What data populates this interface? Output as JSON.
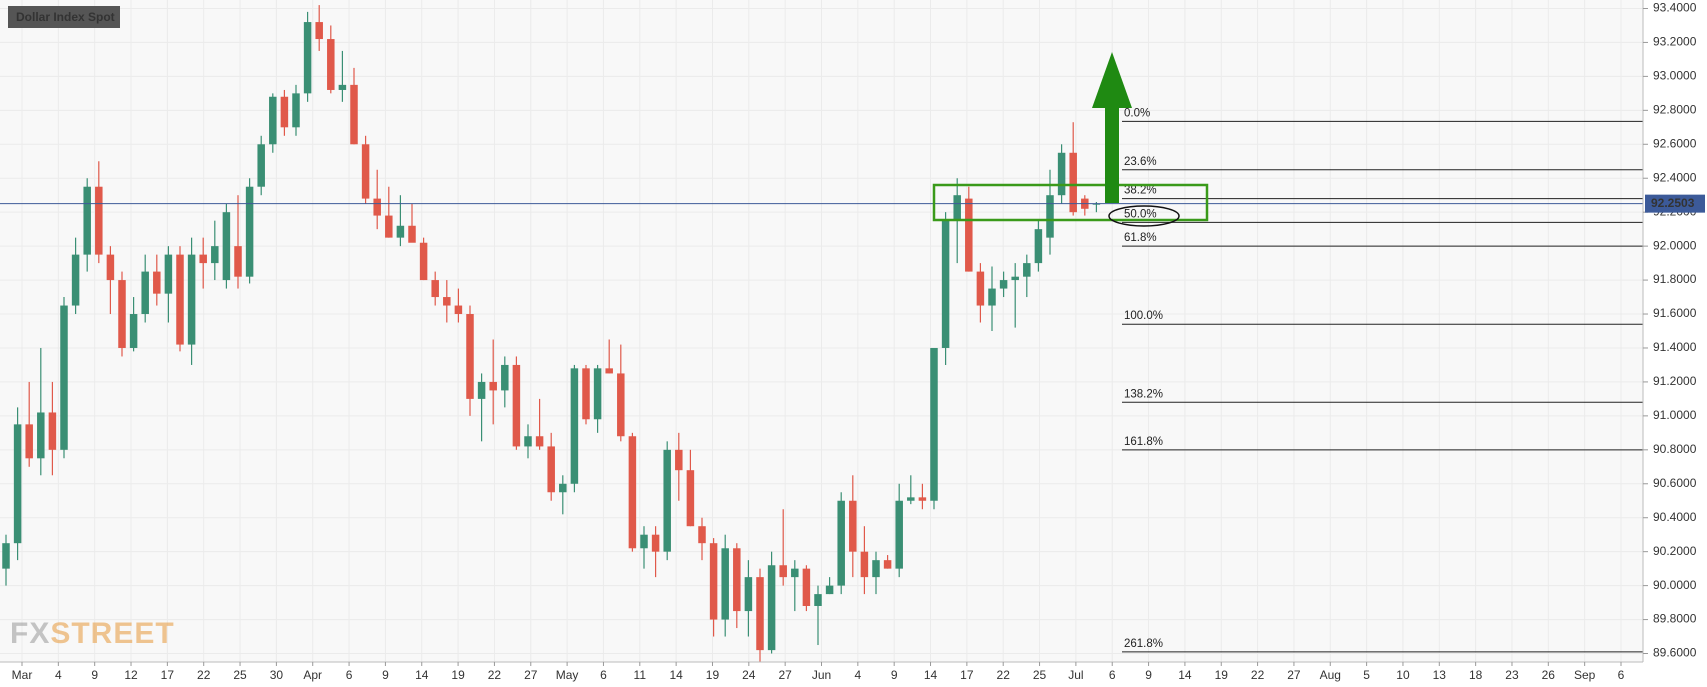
{
  "chart_data": {
    "type": "candlestick",
    "title": "Dollar Index Spot",
    "watermark": [
      "FX",
      "STREET"
    ],
    "up_color": "#3a8f74",
    "down_color": "#e0594a",
    "last_price": 92.2503,
    "last_price_color": "#3c5a99",
    "ylim": [
      89.55,
      93.45
    ],
    "yticks": [
      {
        "value": 93.4,
        "label": "93.4000"
      },
      {
        "value": 93.2,
        "label": "93.2000"
      },
      {
        "value": 93.0,
        "label": "93.0000"
      },
      {
        "value": 92.8,
        "label": "92.8000"
      },
      {
        "value": 92.6,
        "label": "92.6000"
      },
      {
        "value": 92.4,
        "label": "92.4000"
      },
      {
        "value": 92.2,
        "label": "92.2000"
      },
      {
        "value": 92.0,
        "label": "92.0000"
      },
      {
        "value": 91.8,
        "label": "91.8000"
      },
      {
        "value": 91.6,
        "label": "91.6000"
      },
      {
        "value": 91.4,
        "label": "91.4000"
      },
      {
        "value": 91.2,
        "label": "91.2000"
      },
      {
        "value": 91.0,
        "label": "91.0000"
      },
      {
        "value": 90.8,
        "label": "90.8000"
      },
      {
        "value": 90.6,
        "label": "90.6000"
      },
      {
        "value": 90.4,
        "label": "90.4000"
      },
      {
        "value": 90.2,
        "label": "90.2000"
      },
      {
        "value": 90.0,
        "label": "90.0000"
      },
      {
        "value": 89.8,
        "label": "89.8000"
      },
      {
        "value": 89.6,
        "label": "89.6000"
      }
    ],
    "xticks": [
      "Mar",
      "4",
      "9",
      "12",
      "17",
      "22",
      "25",
      "30",
      "Apr",
      "6",
      "9",
      "14",
      "19",
      "22",
      "27",
      "May",
      "6",
      "11",
      "14",
      "19",
      "24",
      "27",
      "Jun",
      "4",
      "9",
      "14",
      "17",
      "22",
      "25",
      "Jul",
      "6",
      "9",
      "14",
      "19",
      "22",
      "27",
      "Aug",
      "5",
      "10",
      "13",
      "18",
      "23",
      "26",
      "Sep",
      "6"
    ],
    "grid": true,
    "fib_levels": [
      {
        "label": "0.0%",
        "value": 92.735
      },
      {
        "label": "23.6%",
        "value": 92.45
      },
      {
        "label": "38.2%",
        "value": 92.28
      },
      {
        "label": "50.0%",
        "value": 92.14
      },
      {
        "label": "61.8%",
        "value": 92.0
      },
      {
        "label": "100.0%",
        "value": 91.54
      },
      {
        "label": "138.2%",
        "value": 91.08
      },
      {
        "label": "161.8%",
        "value": 90.8
      },
      {
        "label": "261.8%",
        "value": 89.61
      }
    ],
    "open": [
      90.1,
      90.25,
      90.95,
      90.75,
      91.02,
      90.8,
      91.65,
      91.95,
      92.35,
      91.95,
      91.8,
      91.4,
      91.6,
      91.85,
      91.72,
      91.95,
      91.42,
      91.95,
      91.9,
      91.8,
      92.0,
      91.82,
      92.35,
      92.6,
      92.88,
      92.7,
      92.9,
      93.32,
      93.22,
      92.92,
      92.95,
      92.6,
      92.28,
      92.18,
      92.05,
      92.12,
      92.02,
      91.8,
      91.7,
      91.65,
      91.6,
      91.1,
      91.2,
      91.15,
      91.3,
      90.82,
      90.88,
      90.82,
      90.55,
      90.6,
      91.28,
      90.98,
      91.28,
      91.25,
      90.88,
      90.22,
      90.3,
      90.2,
      90.8,
      90.68,
      90.35,
      90.25,
      89.8,
      90.22,
      89.85,
      90.05,
      89.62,
      90.12,
      90.05,
      90.1,
      89.88,
      89.95,
      90.0,
      90.5,
      90.2,
      90.05,
      90.15,
      90.1,
      90.5,
      90.52,
      90.5,
      91.4,
      92.15,
      92.28,
      91.85,
      91.65,
      91.75,
      91.8,
      91.82,
      91.9,
      92.05,
      92.3,
      92.55,
      92.28,
      92.25
    ],
    "high": [
      90.3,
      91.05,
      91.2,
      91.4,
      91.2,
      91.7,
      92.05,
      92.4,
      92.5,
      92.0,
      91.85,
      91.7,
      91.95,
      91.95,
      92.0,
      92.0,
      92.05,
      92.05,
      92.15,
      92.25,
      92.3,
      92.4,
      92.65,
      92.9,
      92.92,
      92.95,
      93.38,
      93.42,
      93.3,
      93.15,
      93.05,
      92.65,
      92.45,
      92.35,
      92.3,
      92.25,
      92.05,
      91.85,
      91.8,
      91.75,
      91.65,
      91.25,
      91.45,
      91.35,
      91.35,
      90.95,
      91.1,
      90.9,
      90.65,
      91.3,
      91.3,
      91.3,
      91.45,
      91.42,
      90.9,
      90.35,
      90.35,
      90.85,
      90.9,
      90.8,
      90.4,
      90.28,
      90.3,
      90.25,
      90.15,
      90.1,
      90.2,
      90.45,
      90.15,
      90.12,
      90.0,
      90.05,
      90.55,
      90.65,
      90.35,
      90.2,
      90.18,
      90.6,
      90.65,
      90.6,
      91.4,
      92.2,
      92.4,
      92.35,
      91.9,
      91.88,
      91.85,
      91.9,
      91.95,
      92.15,
      92.45,
      92.6,
      92.73,
      92.3,
      92.26
    ],
    "low": [
      90.0,
      90.15,
      90.7,
      90.65,
      90.65,
      90.75,
      91.6,
      91.85,
      91.9,
      91.6,
      91.35,
      91.38,
      91.55,
      91.65,
      91.55,
      91.38,
      91.3,
      91.75,
      91.8,
      91.75,
      91.75,
      91.78,
      92.3,
      92.55,
      92.65,
      92.65,
      92.85,
      93.15,
      92.9,
      92.85,
      92.6,
      92.25,
      92.1,
      92.05,
      92.0,
      92.05,
      91.8,
      91.65,
      91.55,
      91.55,
      91.0,
      90.85,
      90.95,
      91.05,
      90.8,
      90.75,
      90.8,
      90.5,
      90.42,
      90.55,
      90.95,
      90.9,
      91.25,
      90.85,
      90.2,
      90.1,
      90.05,
      90.15,
      90.5,
      90.35,
      90.15,
      89.7,
      89.7,
      89.75,
      89.7,
      89.55,
      89.6,
      90.0,
      89.85,
      89.85,
      89.65,
      89.95,
      89.95,
      90.05,
      89.95,
      89.95,
      90.1,
      90.05,
      90.48,
      90.45,
      90.45,
      91.3,
      91.9,
      91.85,
      91.55,
      91.5,
      91.7,
      91.52,
      91.7,
      91.85,
      91.95,
      92.25,
      92.18,
      92.18,
      92.2
    ],
    "close": [
      90.25,
      90.95,
      90.75,
      91.02,
      90.8,
      91.65,
      91.95,
      92.35,
      91.95,
      91.8,
      91.4,
      91.6,
      91.85,
      91.72,
      91.95,
      91.42,
      91.95,
      91.9,
      92.0,
      92.2,
      91.82,
      92.35,
      92.6,
      92.88,
      92.7,
      92.9,
      93.32,
      93.22,
      92.92,
      92.95,
      92.6,
      92.28,
      92.18,
      92.05,
      92.12,
      92.02,
      91.8,
      91.7,
      91.65,
      91.6,
      91.1,
      91.2,
      91.15,
      91.3,
      90.82,
      90.88,
      90.82,
      90.55,
      90.6,
      91.28,
      90.98,
      91.28,
      91.25,
      90.88,
      90.22,
      90.3,
      90.2,
      90.8,
      90.68,
      90.35,
      90.25,
      89.8,
      90.22,
      89.85,
      90.05,
      89.62,
      90.12,
      90.05,
      90.1,
      89.88,
      89.95,
      90.0,
      90.5,
      90.2,
      90.05,
      90.15,
      90.1,
      90.5,
      90.52,
      90.5,
      91.4,
      92.15,
      92.3,
      91.85,
      91.65,
      91.75,
      91.8,
      91.82,
      91.9,
      92.1,
      92.3,
      92.55,
      92.2,
      92.22,
      92.25
    ]
  }
}
